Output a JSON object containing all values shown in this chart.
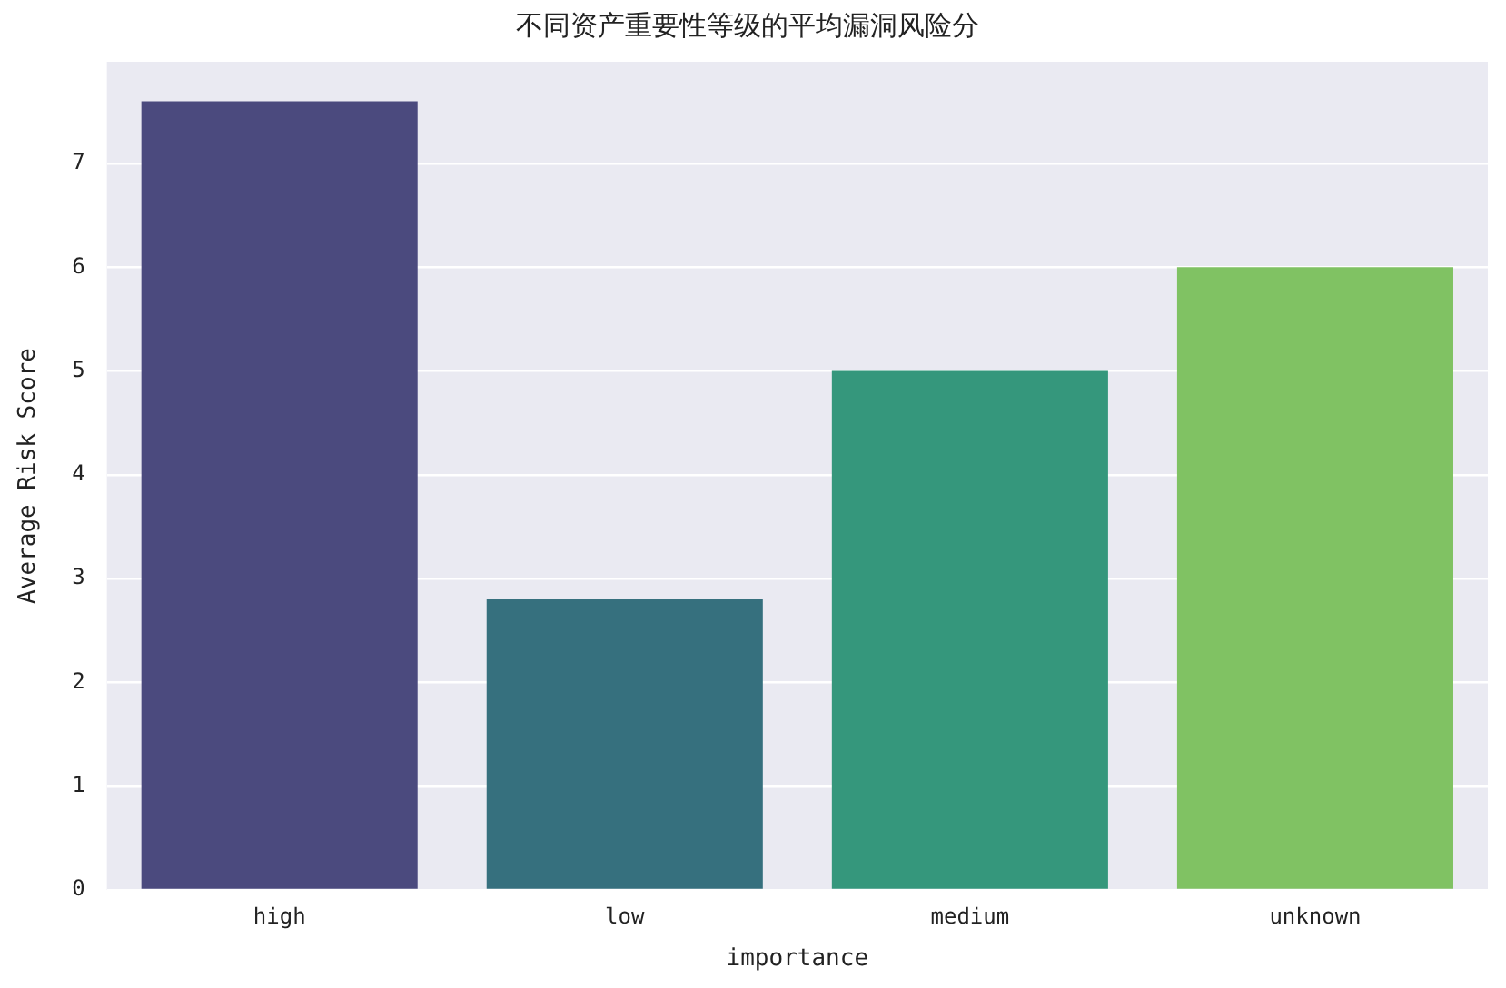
{
  "chart_data": {
    "type": "bar",
    "title": "不同资产重要性等级的平均漏洞风险分",
    "xlabel": "importance",
    "ylabel": "Average Risk Score",
    "categories": [
      "high",
      "low",
      "medium",
      "unknown"
    ],
    "values": [
      7.6,
      2.8,
      5.0,
      6.0
    ],
    "colors": [
      "#4b4a7e",
      "#36707e",
      "#35977c",
      "#80c263"
    ],
    "ylim": [
      0,
      7.98
    ],
    "yticks": [
      0,
      1,
      2,
      3,
      4,
      5,
      6,
      7
    ],
    "grid": "y",
    "legend": false
  }
}
